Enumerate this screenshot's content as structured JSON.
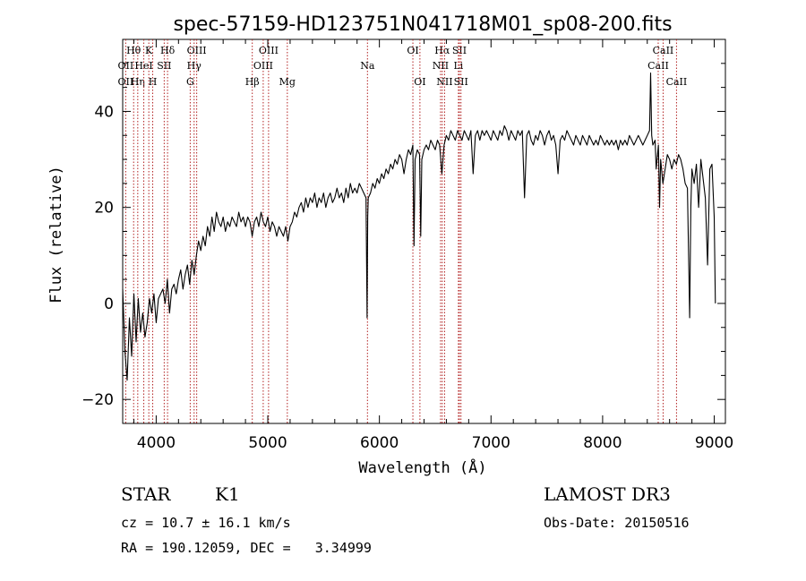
{
  "chart_data": {
    "type": "line",
    "title": "spec-57159-HD123751N041718M01_sp08-200.fits",
    "xlabel": "Wavelength (Å)",
    "ylabel": "Flux (relative)",
    "xlim": [
      3700,
      9100
    ],
    "ylim": [
      -25,
      55
    ],
    "xticks": [
      4000,
      5000,
      6000,
      7000,
      8000,
      9000
    ],
    "yticks": [
      -20,
      0,
      20,
      40
    ],
    "grid": false,
    "line_color": "#000000",
    "marker_color": "#b22222",
    "lines": [
      {
        "label": "Hθ",
        "x": 3798,
        "row": 0
      },
      {
        "label": "OII",
        "x": 3727,
        "row": 1
      },
      {
        "label": "OII",
        "x": 3727,
        "row": 2
      },
      {
        "label": "Hη",
        "x": 3835,
        "row": 2
      },
      {
        "label": "HeI",
        "x": 3889,
        "row": 1
      },
      {
        "label": "K",
        "x": 3934,
        "row": 0
      },
      {
        "label": "H",
        "x": 3969,
        "row": 2
      },
      {
        "label": "SII",
        "x": 4072,
        "row": 1
      },
      {
        "label": "Hδ",
        "x": 4102,
        "row": 0
      },
      {
        "label": "OIII",
        "x": 4363,
        "row": 0
      },
      {
        "label": "Hγ",
        "x": 4340,
        "row": 1
      },
      {
        "label": "G",
        "x": 4305,
        "row": 2
      },
      {
        "label": "Hβ",
        "x": 4861,
        "row": 2
      },
      {
        "label": "OIII",
        "x": 5007,
        "row": 0
      },
      {
        "label": "OIII",
        "x": 4959,
        "row": 1
      },
      {
        "label": "Mg",
        "x": 5175,
        "row": 2
      },
      {
        "label": "Na",
        "x": 5893,
        "row": 1
      },
      {
        "label": "OI",
        "x": 6300,
        "row": 0
      },
      {
        "label": "OI",
        "x": 6363,
        "row": 2
      },
      {
        "label": "Hα",
        "x": 6563,
        "row": 0
      },
      {
        "label": "NII",
        "x": 6548,
        "row": 1
      },
      {
        "label": "NII",
        "x": 6584,
        "row": 2
      },
      {
        "label": "SII",
        "x": 6717,
        "row": 0
      },
      {
        "label": "Li",
        "x": 6708,
        "row": 1
      },
      {
        "label": "SII",
        "x": 6731,
        "row": 2
      },
      {
        "label": "CaII",
        "x": 8542,
        "row": 0
      },
      {
        "label": "CaII",
        "x": 8498,
        "row": 1
      },
      {
        "label": "CaII",
        "x": 8662,
        "row": 2
      }
    ],
    "series": [
      {
        "points": [
          [
            3700,
            3
          ],
          [
            3720,
            -10
          ],
          [
            3740,
            -16
          ],
          [
            3760,
            -3
          ],
          [
            3780,
            -11
          ],
          [
            3800,
            2
          ],
          [
            3820,
            -8
          ],
          [
            3840,
            1
          ],
          [
            3860,
            -6
          ],
          [
            3880,
            -2
          ],
          [
            3900,
            -7
          ],
          [
            3920,
            -4
          ],
          [
            3940,
            1
          ],
          [
            3960,
            -2
          ],
          [
            3980,
            2
          ],
          [
            4000,
            -4
          ],
          [
            4020,
            1
          ],
          [
            4040,
            2
          ],
          [
            4060,
            3
          ],
          [
            4080,
            0
          ],
          [
            4100,
            5
          ],
          [
            4120,
            -2
          ],
          [
            4140,
            3
          ],
          [
            4160,
            4
          ],
          [
            4180,
            2
          ],
          [
            4200,
            5
          ],
          [
            4220,
            7
          ],
          [
            4240,
            3
          ],
          [
            4260,
            6
          ],
          [
            4280,
            8
          ],
          [
            4300,
            4
          ],
          [
            4320,
            9
          ],
          [
            4340,
            6
          ],
          [
            4360,
            10
          ],
          [
            4380,
            13
          ],
          [
            4400,
            11
          ],
          [
            4420,
            14
          ],
          [
            4440,
            12
          ],
          [
            4460,
            16
          ],
          [
            4480,
            14
          ],
          [
            4500,
            18
          ],
          [
            4520,
            15
          ],
          [
            4540,
            19
          ],
          [
            4560,
            17
          ],
          [
            4580,
            16
          ],
          [
            4600,
            18
          ],
          [
            4620,
            15
          ],
          [
            4640,
            17
          ],
          [
            4660,
            16
          ],
          [
            4680,
            18
          ],
          [
            4700,
            17
          ],
          [
            4720,
            16
          ],
          [
            4740,
            19
          ],
          [
            4760,
            17
          ],
          [
            4780,
            18
          ],
          [
            4800,
            16
          ],
          [
            4820,
            18
          ],
          [
            4840,
            17
          ],
          [
            4860,
            14
          ],
          [
            4880,
            17
          ],
          [
            4900,
            18
          ],
          [
            4920,
            16
          ],
          [
            4940,
            19
          ],
          [
            4960,
            17
          ],
          [
            4980,
            16
          ],
          [
            5000,
            18
          ],
          [
            5020,
            15
          ],
          [
            5040,
            17
          ],
          [
            5060,
            16
          ],
          [
            5080,
            14
          ],
          [
            5100,
            16
          ],
          [
            5120,
            15
          ],
          [
            5140,
            14
          ],
          [
            5160,
            16
          ],
          [
            5180,
            13
          ],
          [
            5200,
            16
          ],
          [
            5220,
            17
          ],
          [
            5240,
            19
          ],
          [
            5260,
            18
          ],
          [
            5280,
            20
          ],
          [
            5300,
            21
          ],
          [
            5320,
            19
          ],
          [
            5340,
            22
          ],
          [
            5360,
            20
          ],
          [
            5380,
            22
          ],
          [
            5400,
            21
          ],
          [
            5420,
            23
          ],
          [
            5440,
            20
          ],
          [
            5460,
            22
          ],
          [
            5480,
            21
          ],
          [
            5500,
            23
          ],
          [
            5520,
            20
          ],
          [
            5540,
            22
          ],
          [
            5560,
            23
          ],
          [
            5580,
            21
          ],
          [
            5600,
            22
          ],
          [
            5620,
            24
          ],
          [
            5640,
            22
          ],
          [
            5660,
            23
          ],
          [
            5680,
            21
          ],
          [
            5700,
            24
          ],
          [
            5720,
            22
          ],
          [
            5740,
            25
          ],
          [
            5760,
            23
          ],
          [
            5780,
            24
          ],
          [
            5800,
            23
          ],
          [
            5820,
            25
          ],
          [
            5840,
            24
          ],
          [
            5860,
            23
          ],
          [
            5880,
            22
          ],
          [
            5890,
            -3
          ],
          [
            5895,
            18
          ],
          [
            5900,
            22
          ],
          [
            5920,
            23
          ],
          [
            5940,
            25
          ],
          [
            5960,
            24
          ],
          [
            5980,
            26
          ],
          [
            6000,
            25
          ],
          [
            6020,
            27
          ],
          [
            6040,
            26
          ],
          [
            6060,
            28
          ],
          [
            6080,
            27
          ],
          [
            6100,
            29
          ],
          [
            6120,
            28
          ],
          [
            6140,
            30
          ],
          [
            6160,
            29
          ],
          [
            6180,
            31
          ],
          [
            6200,
            30
          ],
          [
            6220,
            27
          ],
          [
            6240,
            30
          ],
          [
            6260,
            32
          ],
          [
            6280,
            31
          ],
          [
            6300,
            33
          ],
          [
            6310,
            12
          ],
          [
            6320,
            30
          ],
          [
            6340,
            32
          ],
          [
            6360,
            31
          ],
          [
            6370,
            14
          ],
          [
            6380,
            30
          ],
          [
            6400,
            32
          ],
          [
            6420,
            33
          ],
          [
            6440,
            32
          ],
          [
            6460,
            34
          ],
          [
            6480,
            33
          ],
          [
            6500,
            32
          ],
          [
            6520,
            34
          ],
          [
            6540,
            33
          ],
          [
            6560,
            27
          ],
          [
            6580,
            33
          ],
          [
            6600,
            35
          ],
          [
            6620,
            34
          ],
          [
            6640,
            36
          ],
          [
            6660,
            35
          ],
          [
            6680,
            34
          ],
          [
            6700,
            36
          ],
          [
            6720,
            35
          ],
          [
            6740,
            34
          ],
          [
            6760,
            36
          ],
          [
            6780,
            35
          ],
          [
            6800,
            34
          ],
          [
            6820,
            36
          ],
          [
            6840,
            27
          ],
          [
            6860,
            35
          ],
          [
            6880,
            36
          ],
          [
            6900,
            34
          ],
          [
            6920,
            36
          ],
          [
            6940,
            35
          ],
          [
            6960,
            36
          ],
          [
            6980,
            35
          ],
          [
            7000,
            34
          ],
          [
            7020,
            36
          ],
          [
            7040,
            35
          ],
          [
            7060,
            34
          ],
          [
            7080,
            36
          ],
          [
            7100,
            35
          ],
          [
            7120,
            37
          ],
          [
            7140,
            36
          ],
          [
            7160,
            34
          ],
          [
            7180,
            36
          ],
          [
            7200,
            35
          ],
          [
            7220,
            34
          ],
          [
            7240,
            36
          ],
          [
            7260,
            35
          ],
          [
            7280,
            36
          ],
          [
            7300,
            22
          ],
          [
            7320,
            35
          ],
          [
            7340,
            36
          ],
          [
            7360,
            34
          ],
          [
            7380,
            33
          ],
          [
            7400,
            35
          ],
          [
            7420,
            34
          ],
          [
            7440,
            36
          ],
          [
            7460,
            35
          ],
          [
            7480,
            33
          ],
          [
            7500,
            35
          ],
          [
            7520,
            36
          ],
          [
            7540,
            34
          ],
          [
            7560,
            35
          ],
          [
            7580,
            33
          ],
          [
            7600,
            27
          ],
          [
            7620,
            34
          ],
          [
            7640,
            35
          ],
          [
            7660,
            34
          ],
          [
            7680,
            36
          ],
          [
            7700,
            35
          ],
          [
            7720,
            34
          ],
          [
            7740,
            33
          ],
          [
            7760,
            35
          ],
          [
            7780,
            34
          ],
          [
            7800,
            33
          ],
          [
            7820,
            35
          ],
          [
            7840,
            34
          ],
          [
            7860,
            33
          ],
          [
            7880,
            35
          ],
          [
            7900,
            34
          ],
          [
            7920,
            33
          ],
          [
            7940,
            34
          ],
          [
            7960,
            33
          ],
          [
            7980,
            35
          ],
          [
            8000,
            34
          ],
          [
            8020,
            33
          ],
          [
            8040,
            34
          ],
          [
            8060,
            33
          ],
          [
            8080,
            34
          ],
          [
            8100,
            33
          ],
          [
            8120,
            34
          ],
          [
            8140,
            32
          ],
          [
            8160,
            34
          ],
          [
            8180,
            33
          ],
          [
            8200,
            34
          ],
          [
            8220,
            33
          ],
          [
            8240,
            35
          ],
          [
            8260,
            34
          ],
          [
            8280,
            33
          ],
          [
            8300,
            34
          ],
          [
            8320,
            35
          ],
          [
            8340,
            34
          ],
          [
            8360,
            33
          ],
          [
            8380,
            34
          ],
          [
            8400,
            35
          ],
          [
            8420,
            36
          ],
          [
            8430,
            48
          ],
          [
            8440,
            35
          ],
          [
            8450,
            33
          ],
          [
            8470,
            34
          ],
          [
            8480,
            28
          ],
          [
            8500,
            33
          ],
          [
            8510,
            20
          ],
          [
            8520,
            30
          ],
          [
            8540,
            25
          ],
          [
            8560,
            28
          ],
          [
            8580,
            31
          ],
          [
            8600,
            30
          ],
          [
            8620,
            28
          ],
          [
            8640,
            30
          ],
          [
            8660,
            29
          ],
          [
            8680,
            31
          ],
          [
            8700,
            30
          ],
          [
            8720,
            28
          ],
          [
            8740,
            25
          ],
          [
            8760,
            24
          ],
          [
            8780,
            -3
          ],
          [
            8790,
            20
          ],
          [
            8800,
            28
          ],
          [
            8820,
            25
          ],
          [
            8840,
            29
          ],
          [
            8860,
            20
          ],
          [
            8880,
            30
          ],
          [
            8900,
            26
          ],
          [
            8920,
            22
          ],
          [
            8940,
            8
          ],
          [
            8960,
            28
          ],
          [
            8980,
            29
          ],
          [
            9000,
            18
          ],
          [
            9010,
            0
          ]
        ]
      }
    ]
  },
  "info": {
    "object_class": "STAR",
    "subclass": "K1",
    "survey": "LAMOST DR3",
    "cz": "cz = 10.7 ± 16.1 km/s",
    "obs_date": "Obs-Date: 20150516",
    "coords": "RA = 190.12059, DEC =   3.34999"
  }
}
